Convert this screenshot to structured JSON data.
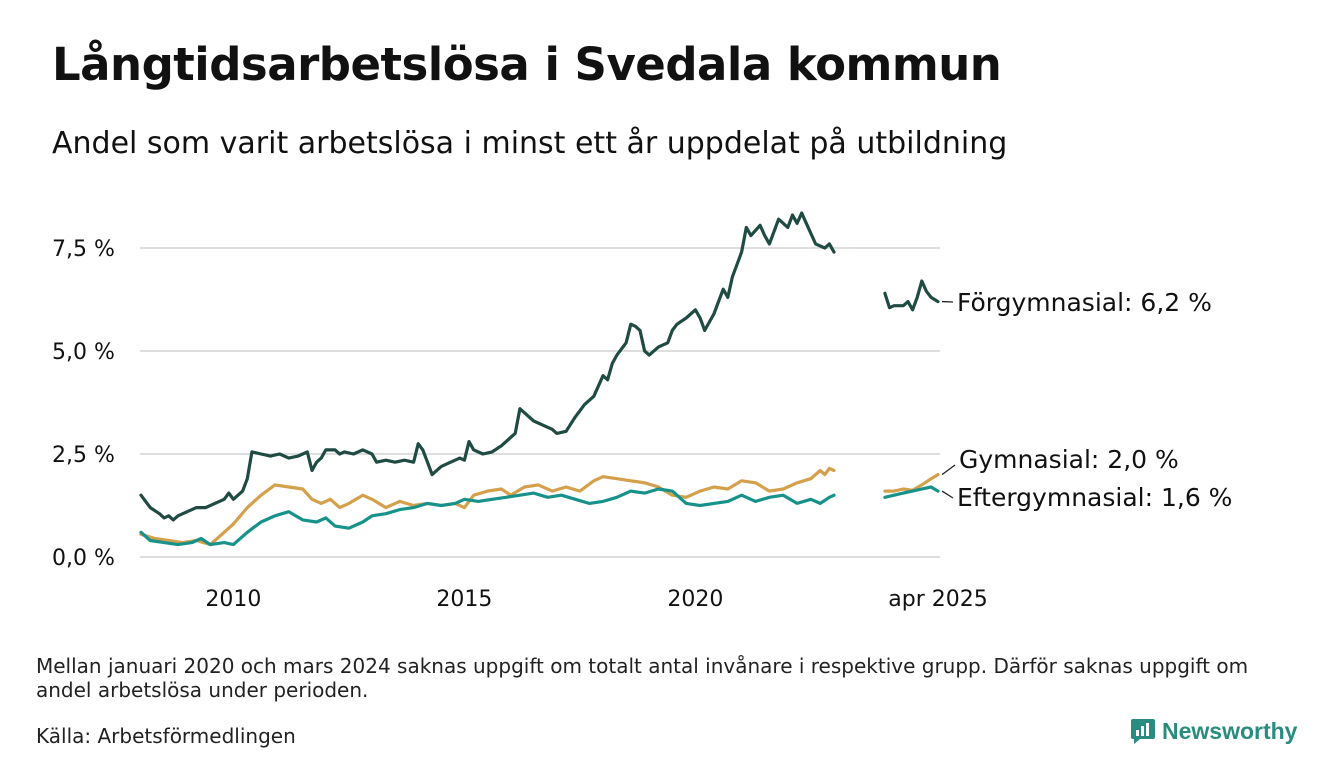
{
  "title": "Långtidsarbetslösa i Svedala kommun",
  "subtitle": "Andel som varit arbetslösa i minst ett år uppdelat på utbildning",
  "note": "Mellan januari 2020 och mars 2024 saknas uppgift om totalt antal invånare i respektive grupp. Därför saknas uppgift om andel arbetslösa under perioden.",
  "source": "Källa: Arbetsförmedlingen",
  "brand": "Newsworthy",
  "colors": {
    "forgymnasial": "#1f4b43",
    "gymnasial": "#d4a04c",
    "eftergymnasial": "#17928a",
    "grid": "#dedede",
    "brand": "#2a8c80"
  },
  "chart_data": {
    "type": "line",
    "y_axis": {
      "ticks": [
        0,
        2.5,
        5.0,
        7.5
      ],
      "tick_labels": [
        "0,0 %",
        "2,5 %",
        "5,0 %",
        "7,5 %"
      ],
      "ylim": [
        0,
        8.5
      ]
    },
    "x_axis": {
      "tick_labels": [
        "2010",
        "2015",
        "2020",
        "apr 2025"
      ],
      "tick_positions": [
        2010,
        2015,
        2020,
        2025.25
      ],
      "xlim": [
        2008.0,
        2025.3
      ]
    },
    "grid": "horizontal",
    "series": [
      {
        "name": "Förgymnasial",
        "end_label": "Förgymnasial: 6,2 %",
        "color_key": "forgymnasial",
        "segments": [
          [
            [
              2008.0,
              1.5
            ],
            [
              2008.2,
              1.2
            ],
            [
              2008.4,
              1.05
            ],
            [
              2008.5,
              0.95
            ],
            [
              2008.6,
              1.0
            ],
            [
              2008.7,
              0.9
            ],
            [
              2008.8,
              1.0
            ],
            [
              2009.0,
              1.1
            ],
            [
              2009.2,
              1.2
            ],
            [
              2009.4,
              1.2
            ],
            [
              2009.6,
              1.3
            ],
            [
              2009.8,
              1.4
            ],
            [
              2009.9,
              1.55
            ],
            [
              2010.0,
              1.4
            ],
            [
              2010.2,
              1.6
            ],
            [
              2010.3,
              1.9
            ],
            [
              2010.4,
              2.55
            ],
            [
              2010.6,
              2.5
            ],
            [
              2010.8,
              2.45
            ],
            [
              2011.0,
              2.5
            ],
            [
              2011.2,
              2.4
            ],
            [
              2011.4,
              2.45
            ],
            [
              2011.5,
              2.5
            ],
            [
              2011.6,
              2.55
            ],
            [
              2011.7,
              2.1
            ],
            [
              2011.8,
              2.3
            ],
            [
              2011.9,
              2.4
            ],
            [
              2012.0,
              2.6
            ],
            [
              2012.2,
              2.6
            ],
            [
              2012.3,
              2.5
            ],
            [
              2012.4,
              2.55
            ],
            [
              2012.6,
              2.5
            ],
            [
              2012.8,
              2.6
            ],
            [
              2013.0,
              2.5
            ],
            [
              2013.1,
              2.3
            ],
            [
              2013.3,
              2.35
            ],
            [
              2013.5,
              2.3
            ],
            [
              2013.7,
              2.35
            ],
            [
              2013.9,
              2.3
            ],
            [
              2014.0,
              2.75
            ],
            [
              2014.1,
              2.6
            ],
            [
              2014.2,
              2.3
            ],
            [
              2014.3,
              2.0
            ],
            [
              2014.5,
              2.2
            ],
            [
              2014.7,
              2.3
            ],
            [
              2014.9,
              2.4
            ],
            [
              2015.0,
              2.35
            ],
            [
              2015.1,
              2.8
            ],
            [
              2015.2,
              2.6
            ],
            [
              2015.4,
              2.5
            ],
            [
              2015.6,
              2.55
            ],
            [
              2015.8,
              2.7
            ],
            [
              2016.0,
              2.9
            ],
            [
              2016.1,
              3.0
            ],
            [
              2016.2,
              3.6
            ],
            [
              2016.3,
              3.5
            ],
            [
              2016.5,
              3.3
            ],
            [
              2016.7,
              3.2
            ],
            [
              2016.9,
              3.1
            ],
            [
              2017.0,
              3.0
            ],
            [
              2017.2,
              3.05
            ],
            [
              2017.4,
              3.4
            ],
            [
              2017.6,
              3.7
            ],
            [
              2017.8,
              3.9
            ],
            [
              2018.0,
              4.4
            ],
            [
              2018.1,
              4.3
            ],
            [
              2018.2,
              4.7
            ],
            [
              2018.3,
              4.9
            ],
            [
              2018.5,
              5.2
            ],
            [
              2018.6,
              5.65
            ],
            [
              2018.7,
              5.6
            ],
            [
              2018.8,
              5.5
            ],
            [
              2018.9,
              5.0
            ],
            [
              2019.0,
              4.9
            ],
            [
              2019.2,
              5.1
            ],
            [
              2019.4,
              5.2
            ],
            [
              2019.5,
              5.5
            ],
            [
              2019.6,
              5.65
            ],
            [
              2019.8,
              5.8
            ],
            [
              2020.0,
              6.0
            ],
            [
              2020.1,
              5.8
            ],
            [
              2020.2,
              5.5
            ],
            [
              2020.4,
              5.9
            ],
            [
              2020.6,
              6.5
            ],
            [
              2020.7,
              6.3
            ],
            [
              2020.8,
              6.8
            ],
            [
              2020.9,
              7.1
            ],
            [
              2021.0,
              7.4
            ],
            [
              2021.1,
              8.0
            ],
            [
              2021.2,
              7.8
            ],
            [
              2021.4,
              8.05
            ],
            [
              2021.5,
              7.8
            ],
            [
              2021.6,
              7.6
            ],
            [
              2021.8,
              8.2
            ],
            [
              2022.0,
              8.0
            ],
            [
              2022.1,
              8.3
            ],
            [
              2022.2,
              8.1
            ],
            [
              2022.3,
              8.35
            ],
            [
              2022.4,
              8.1
            ],
            [
              2022.6,
              7.6
            ],
            [
              2022.8,
              7.5
            ],
            [
              2022.9,
              7.6
            ],
            [
              2023.0,
              7.4
            ]
          ],
          [
            [
              2024.1,
              6.4
            ],
            [
              2024.2,
              6.05
            ],
            [
              2024.3,
              6.1
            ],
            [
              2024.5,
              6.1
            ],
            [
              2024.6,
              6.2
            ],
            [
              2024.7,
              6.0
            ],
            [
              2024.8,
              6.3
            ],
            [
              2024.9,
              6.7
            ],
            [
              2025.0,
              6.45
            ],
            [
              2025.1,
              6.3
            ],
            [
              2025.25,
              6.2
            ]
          ]
        ]
      },
      {
        "name": "Gymnasial",
        "end_label": "Gymnasial: 2,0 %",
        "color_key": "gymnasial",
        "segments": [
          [
            [
              2008.0,
              0.55
            ],
            [
              2008.3,
              0.45
            ],
            [
              2008.6,
              0.4
            ],
            [
              2008.9,
              0.35
            ],
            [
              2009.2,
              0.4
            ],
            [
              2009.5,
              0.3
            ],
            [
              2009.7,
              0.5
            ],
            [
              2010.0,
              0.8
            ],
            [
              2010.3,
              1.2
            ],
            [
              2010.6,
              1.5
            ],
            [
              2010.9,
              1.75
            ],
            [
              2011.2,
              1.7
            ],
            [
              2011.5,
              1.65
            ],
            [
              2011.7,
              1.4
            ],
            [
              2011.9,
              1.3
            ],
            [
              2012.1,
              1.4
            ],
            [
              2012.3,
              1.2
            ],
            [
              2012.5,
              1.3
            ],
            [
              2012.8,
              1.5
            ],
            [
              2013.0,
              1.4
            ],
            [
              2013.3,
              1.2
            ],
            [
              2013.6,
              1.35
            ],
            [
              2013.9,
              1.25
            ],
            [
              2014.2,
              1.3
            ],
            [
              2014.5,
              1.25
            ],
            [
              2014.8,
              1.3
            ],
            [
              2015.0,
              1.2
            ],
            [
              2015.2,
              1.5
            ],
            [
              2015.5,
              1.6
            ],
            [
              2015.8,
              1.65
            ],
            [
              2016.0,
              1.5
            ],
            [
              2016.3,
              1.7
            ],
            [
              2016.6,
              1.75
            ],
            [
              2016.9,
              1.6
            ],
            [
              2017.2,
              1.7
            ],
            [
              2017.5,
              1.6
            ],
            [
              2017.8,
              1.85
            ],
            [
              2018.0,
              1.95
            ],
            [
              2018.3,
              1.9
            ],
            [
              2018.6,
              1.85
            ],
            [
              2018.9,
              1.8
            ],
            [
              2019.2,
              1.7
            ],
            [
              2019.5,
              1.5
            ],
            [
              2019.8,
              1.45
            ],
            [
              2020.1,
              1.6
            ],
            [
              2020.4,
              1.7
            ],
            [
              2020.7,
              1.65
            ],
            [
              2021.0,
              1.85
            ],
            [
              2021.3,
              1.8
            ],
            [
              2021.6,
              1.6
            ],
            [
              2021.9,
              1.65
            ],
            [
              2022.2,
              1.8
            ],
            [
              2022.5,
              1.9
            ],
            [
              2022.7,
              2.1
            ],
            [
              2022.8,
              2.0
            ],
            [
              2022.9,
              2.15
            ],
            [
              2023.0,
              2.1
            ]
          ],
          [
            [
              2024.1,
              1.6
            ],
            [
              2024.3,
              1.6
            ],
            [
              2024.5,
              1.65
            ],
            [
              2024.7,
              1.62
            ],
            [
              2024.9,
              1.75
            ],
            [
              2025.1,
              1.9
            ],
            [
              2025.25,
              2.0
            ]
          ]
        ]
      },
      {
        "name": "Eftergymnasial",
        "end_label": "Eftergymnasial: 1,6 %",
        "color_key": "eftergymnasial",
        "segments": [
          [
            [
              2008.0,
              0.6
            ],
            [
              2008.2,
              0.4
            ],
            [
              2008.5,
              0.35
            ],
            [
              2008.8,
              0.3
            ],
            [
              2009.1,
              0.35
            ],
            [
              2009.3,
              0.45
            ],
            [
              2009.5,
              0.3
            ],
            [
              2009.8,
              0.35
            ],
            [
              2010.0,
              0.3
            ],
            [
              2010.3,
              0.6
            ],
            [
              2010.6,
              0.85
            ],
            [
              2010.9,
              1.0
            ],
            [
              2011.2,
              1.1
            ],
            [
              2011.5,
              0.9
            ],
            [
              2011.8,
              0.85
            ],
            [
              2012.0,
              0.95
            ],
            [
              2012.2,
              0.75
            ],
            [
              2012.5,
              0.7
            ],
            [
              2012.8,
              0.85
            ],
            [
              2013.0,
              1.0
            ],
            [
              2013.3,
              1.05
            ],
            [
              2013.6,
              1.15
            ],
            [
              2013.9,
              1.2
            ],
            [
              2014.2,
              1.3
            ],
            [
              2014.5,
              1.25
            ],
            [
              2014.8,
              1.3
            ],
            [
              2015.0,
              1.4
            ],
            [
              2015.3,
              1.35
            ],
            [
              2015.6,
              1.4
            ],
            [
              2015.9,
              1.45
            ],
            [
              2016.2,
              1.5
            ],
            [
              2016.5,
              1.55
            ],
            [
              2016.8,
              1.45
            ],
            [
              2017.1,
              1.5
            ],
            [
              2017.4,
              1.4
            ],
            [
              2017.7,
              1.3
            ],
            [
              2018.0,
              1.35
            ],
            [
              2018.3,
              1.45
            ],
            [
              2018.6,
              1.6
            ],
            [
              2018.9,
              1.55
            ],
            [
              2019.2,
              1.65
            ],
            [
              2019.5,
              1.6
            ],
            [
              2019.8,
              1.3
            ],
            [
              2020.1,
              1.25
            ],
            [
              2020.4,
              1.3
            ],
            [
              2020.7,
              1.35
            ],
            [
              2021.0,
              1.5
            ],
            [
              2021.3,
              1.35
            ],
            [
              2021.6,
              1.45
            ],
            [
              2021.9,
              1.5
            ],
            [
              2022.2,
              1.3
            ],
            [
              2022.5,
              1.4
            ],
            [
              2022.7,
              1.3
            ],
            [
              2022.9,
              1.45
            ],
            [
              2023.0,
              1.5
            ]
          ],
          [
            [
              2024.1,
              1.45
            ],
            [
              2024.3,
              1.5
            ],
            [
              2024.5,
              1.55
            ],
            [
              2024.7,
              1.6
            ],
            [
              2024.9,
              1.65
            ],
            [
              2025.1,
              1.7
            ],
            [
              2025.25,
              1.6
            ]
          ]
        ]
      }
    ]
  }
}
